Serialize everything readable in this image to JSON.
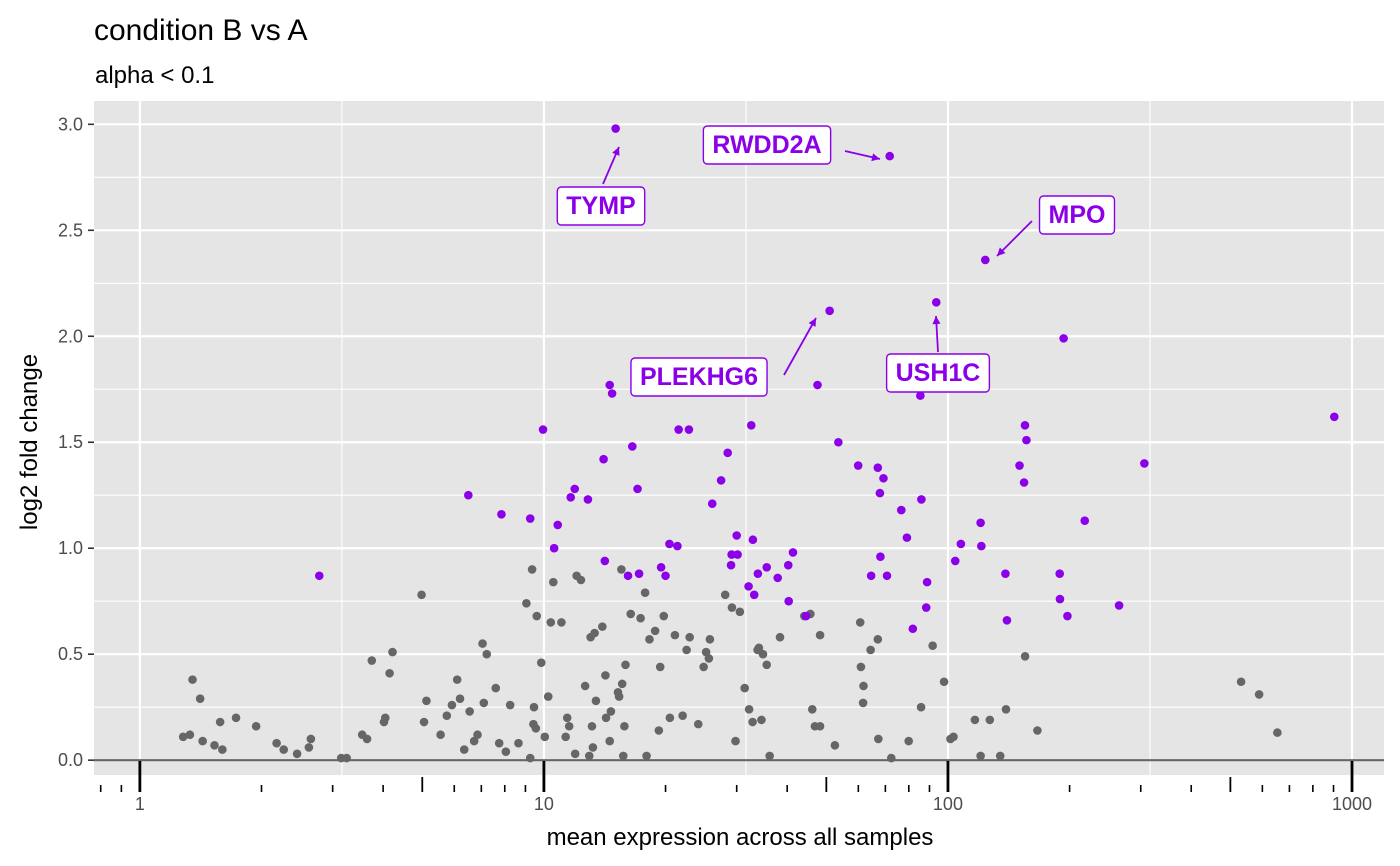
{
  "chart_data": {
    "type": "scatter",
    "title": "condition B vs A",
    "subtitle": "alpha < 0.1",
    "xlabel": "mean expression across all samples",
    "ylabel": "log2 fold change",
    "x_scale": "log10",
    "xlim": [
      0.77,
      1200
    ],
    "ylim": [
      -0.07,
      3.11
    ],
    "x_ticks": [
      1,
      10,
      100,
      1000
    ],
    "x_tick_labels": [
      "1",
      "10",
      "100",
      "1000"
    ],
    "y_ticks": [
      0.0,
      0.5,
      1.0,
      1.5,
      2.0,
      2.5,
      3.0
    ],
    "y_tick_labels": [
      "0.0",
      "0.5",
      "1.0",
      "1.5",
      "2.0",
      "2.5",
      "3.0"
    ],
    "grid": true,
    "hline": 0,
    "colors": {
      "panel": "#e5e5e5",
      "grid": "#ffffff",
      "significant": "#8b00e8",
      "not_significant": "#666666",
      "zero_line": "#666666"
    },
    "series": [
      {
        "color": "#666666",
        "points": [
          [
            1.28,
            0.11
          ],
          [
            1.33,
            0.12
          ],
          [
            1.35,
            0.38
          ],
          [
            1.41,
            0.29
          ],
          [
            1.43,
            0.09
          ],
          [
            1.53,
            0.07
          ],
          [
            1.58,
            0.18
          ],
          [
            1.6,
            0.05
          ],
          [
            1.73,
            0.2
          ],
          [
            1.94,
            0.16
          ],
          [
            2.18,
            0.08
          ],
          [
            2.27,
            0.05
          ],
          [
            2.45,
            0.03
          ],
          [
            2.62,
            0.06
          ],
          [
            2.65,
            0.1
          ],
          [
            3.15,
            0.01
          ],
          [
            3.25,
            0.01
          ],
          [
            3.55,
            0.12
          ],
          [
            3.65,
            0.1
          ],
          [
            3.75,
            0.47
          ],
          [
            4.02,
            0.18
          ],
          [
            4.05,
            0.2
          ],
          [
            4.15,
            0.41
          ],
          [
            4.22,
            0.51
          ],
          [
            4.98,
            0.78
          ],
          [
            5.05,
            0.18
          ],
          [
            5.12,
            0.28
          ],
          [
            5.55,
            0.12
          ],
          [
            5.75,
            0.21
          ],
          [
            5.92,
            0.26
          ],
          [
            6.1,
            0.38
          ],
          [
            6.2,
            0.29
          ],
          [
            6.35,
            0.05
          ],
          [
            6.55,
            0.23
          ],
          [
            6.72,
            0.09
          ],
          [
            6.85,
            0.12
          ],
          [
            7.05,
            0.55
          ],
          [
            7.1,
            0.27
          ],
          [
            7.22,
            0.5
          ],
          [
            7.6,
            0.34
          ],
          [
            7.75,
            0.08
          ],
          [
            8.05,
            0.04
          ],
          [
            8.25,
            0.26
          ],
          [
            8.65,
            0.08
          ],
          [
            9.05,
            0.74
          ],
          [
            9.25,
            0.01
          ],
          [
            9.35,
            0.9
          ],
          [
            9.42,
            0.17
          ],
          [
            9.45,
            0.25
          ],
          [
            9.55,
            0.15
          ],
          [
            9.6,
            0.68
          ],
          [
            9.85,
            0.46
          ],
          [
            10.05,
            0.11
          ],
          [
            10.25,
            0.3
          ],
          [
            10.4,
            0.65
          ],
          [
            10.55,
            0.84
          ],
          [
            11.05,
            0.65
          ],
          [
            11.32,
            0.11
          ],
          [
            11.42,
            0.2
          ],
          [
            11.55,
            0.16
          ],
          [
            11.95,
            0.03
          ],
          [
            12.05,
            0.87
          ],
          [
            12.35,
            0.85
          ],
          [
            12.65,
            0.35
          ],
          [
            12.95,
            0.02
          ],
          [
            13.05,
            0.58
          ],
          [
            13.15,
            0.16
          ],
          [
            13.22,
            0.06
          ],
          [
            13.35,
            0.6
          ],
          [
            13.45,
            0.28
          ],
          [
            13.95,
            0.63
          ],
          [
            14.2,
            0.4
          ],
          [
            14.25,
            0.2
          ],
          [
            14.55,
            0.09
          ],
          [
            14.65,
            0.23
          ],
          [
            15.25,
            0.32
          ],
          [
            15.35,
            0.3
          ],
          [
            15.55,
            0.9
          ],
          [
            15.62,
            0.36
          ],
          [
            15.72,
            0.02
          ],
          [
            15.82,
            0.16
          ],
          [
            15.92,
            0.45
          ],
          [
            16.4,
            0.69
          ],
          [
            17.35,
            0.67
          ],
          [
            17.8,
            0.79
          ],
          [
            17.95,
            0.02
          ],
          [
            18.25,
            0.57
          ],
          [
            18.85,
            0.61
          ],
          [
            19.25,
            0.14
          ],
          [
            19.4,
            0.44
          ],
          [
            19.8,
            0.68
          ],
          [
            20.5,
            0.2
          ],
          [
            21.1,
            0.59
          ],
          [
            22.05,
            0.21
          ],
          [
            22.55,
            0.52
          ],
          [
            22.95,
            0.58
          ],
          [
            24.1,
            0.17
          ],
          [
            24.85,
            0.44
          ],
          [
            25.2,
            0.51
          ],
          [
            25.6,
            0.48
          ],
          [
            25.75,
            0.57
          ],
          [
            28.1,
            0.78
          ],
          [
            29.2,
            0.72
          ],
          [
            29.8,
            0.09
          ],
          [
            30.55,
            0.7
          ],
          [
            31.4,
            0.34
          ],
          [
            32.2,
            0.24
          ],
          [
            32.85,
            0.18
          ],
          [
            33.8,
            0.52
          ],
          [
            34.05,
            0.53
          ],
          [
            34.55,
            0.19
          ],
          [
            34.85,
            0.5
          ],
          [
            35.6,
            0.45
          ],
          [
            36.2,
            0.02
          ],
          [
            38.4,
            0.58
          ],
          [
            44.1,
            0.68
          ],
          [
            45.65,
            0.69
          ],
          [
            46.15,
            0.24
          ],
          [
            46.85,
            0.16
          ],
          [
            48.25,
            0.59
          ],
          [
            48.25,
            0.16
          ],
          [
            52.5,
            0.07
          ],
          [
            60.65,
            0.65
          ],
          [
            60.9,
            0.44
          ],
          [
            61.65,
            0.27
          ],
          [
            61.8,
            0.35
          ],
          [
            64.35,
            0.52
          ],
          [
            67.05,
            0.57
          ],
          [
            67.25,
            0.1
          ],
          [
            72.4,
            0.01
          ],
          [
            79.95,
            0.09
          ],
          [
            85.8,
            0.25
          ],
          [
            91.65,
            0.54
          ],
          [
            97.8,
            0.37
          ],
          [
            101.45,
            0.1
          ],
          [
            103.2,
            0.11
          ],
          [
            116.6,
            0.19
          ],
          [
            120.45,
            0.02
          ],
          [
            126.95,
            0.19
          ],
          [
            134.7,
            0.02
          ],
          [
            139.2,
            0.24
          ],
          [
            155.2,
            0.49
          ],
          [
            166.5,
            0.14
          ],
          [
            531.5,
            0.37
          ],
          [
            589.0,
            0.31
          ],
          [
            653.5,
            0.13
          ]
        ]
      },
      {
        "color": "#8b00e8",
        "points": [
          [
            2.78,
            0.87
          ],
          [
            6.5,
            1.25
          ],
          [
            7.85,
            1.16
          ],
          [
            9.25,
            1.14
          ],
          [
            9.95,
            1.56
          ],
          [
            10.6,
            1.0
          ],
          [
            10.82,
            1.11
          ],
          [
            11.65,
            1.24
          ],
          [
            11.92,
            1.28
          ],
          [
            12.85,
            1.23
          ],
          [
            14.05,
            1.42
          ],
          [
            14.15,
            0.94
          ],
          [
            14.55,
            1.77
          ],
          [
            14.75,
            1.73
          ],
          [
            15.05,
            2.98
          ],
          [
            16.15,
            0.87
          ],
          [
            16.55,
            1.48
          ],
          [
            17.05,
            1.28
          ],
          [
            17.2,
            0.88
          ],
          [
            19.5,
            0.91
          ],
          [
            20.0,
            0.87
          ],
          [
            20.45,
            1.02
          ],
          [
            21.4,
            1.01
          ],
          [
            21.55,
            1.56
          ],
          [
            22.85,
            1.56
          ],
          [
            26.1,
            1.21
          ],
          [
            27.45,
            1.32
          ],
          [
            28.5,
            1.45
          ],
          [
            29.05,
            0.92
          ],
          [
            29.15,
            0.97
          ],
          [
            30.0,
            1.06
          ],
          [
            30.15,
            0.97
          ],
          [
            32.1,
            0.82
          ],
          [
            32.6,
            1.58
          ],
          [
            32.9,
            1.04
          ],
          [
            33.15,
            0.78
          ],
          [
            33.85,
            0.88
          ],
          [
            35.6,
            0.91
          ],
          [
            37.9,
            0.86
          ],
          [
            40.25,
            0.92
          ],
          [
            40.35,
            0.75
          ],
          [
            41.35,
            0.98
          ],
          [
            44.55,
            0.68
          ],
          [
            47.55,
            1.77
          ],
          [
            50.95,
            2.12
          ],
          [
            53.55,
            1.5
          ],
          [
            59.95,
            1.39
          ],
          [
            64.55,
            0.87
          ],
          [
            67.05,
            1.38
          ],
          [
            67.85,
            1.26
          ],
          [
            68.05,
            0.96
          ],
          [
            69.25,
            1.33
          ],
          [
            70.65,
            0.87
          ],
          [
            71.75,
            2.85
          ],
          [
            76.65,
            1.18
          ],
          [
            79.15,
            1.05
          ],
          [
            81.85,
            0.62
          ],
          [
            85.45,
            1.72
          ],
          [
            85.95,
            1.23
          ],
          [
            88.35,
            0.72
          ],
          [
            88.8,
            0.84
          ],
          [
            93.55,
            2.16
          ],
          [
            104.25,
            0.94
          ],
          [
            107.65,
            1.02
          ],
          [
            120.45,
            1.12
          ],
          [
            120.95,
            1.01
          ],
          [
            123.7,
            2.36
          ],
          [
            138.75,
            0.88
          ],
          [
            139.95,
            0.66
          ],
          [
            150.35,
            1.39
          ],
          [
            154.3,
            1.31
          ],
          [
            155.1,
            1.58
          ],
          [
            156.4,
            1.51
          ],
          [
            189.05,
            0.88
          ],
          [
            189.3,
            0.76
          ],
          [
            193.3,
            1.99
          ],
          [
            197.55,
            0.68
          ],
          [
            218.05,
            1.13
          ],
          [
            265.15,
            0.73
          ],
          [
            306.25,
            1.4
          ],
          [
            904.0,
            1.62
          ]
        ]
      }
    ],
    "labels": [
      {
        "text": "TYMP",
        "x": 15.05,
        "y": 2.98
      },
      {
        "text": "RWDD2A",
        "x": 71.75,
        "y": 2.85
      },
      {
        "text": "MPO",
        "x": 123.7,
        "y": 2.36
      },
      {
        "text": "PLEKHG6",
        "x": 50.95,
        "y": 2.12
      },
      {
        "text": "USH1C",
        "x": 93.55,
        "y": 2.16
      }
    ]
  }
}
